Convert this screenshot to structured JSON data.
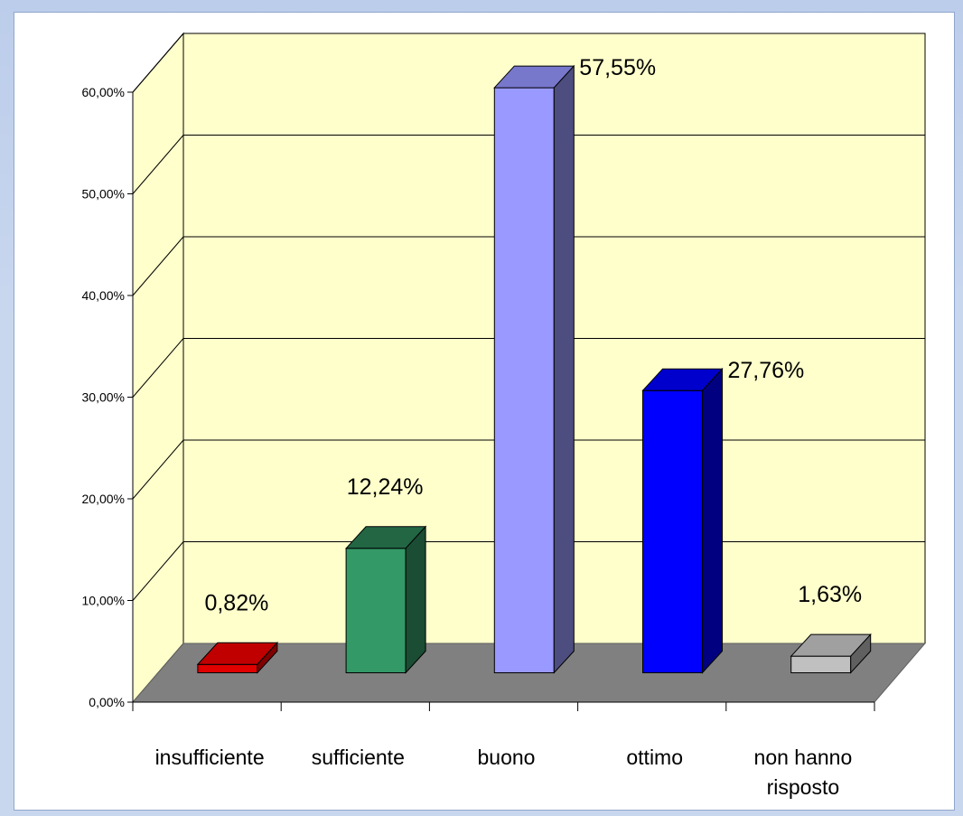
{
  "chart_data": {
    "type": "bar",
    "style": "3d-column",
    "categories": [
      "insufficiente",
      "sufficiente",
      "buono",
      "ottimo",
      "non hanno risposto"
    ],
    "category_lines": [
      [
        "insufficiente"
      ],
      [
        "sufficiente"
      ],
      [
        "buono"
      ],
      [
        "ottimo"
      ],
      [
        "non hanno",
        "risposto"
      ]
    ],
    "values": [
      0.82,
      12.24,
      57.55,
      27.76,
      1.63
    ],
    "data_labels": [
      "0,82%",
      "12,24%",
      "57,55%",
      "27,76%",
      "1,63%"
    ],
    "ylim": [
      0,
      60
    ],
    "yticks": [
      0,
      10,
      20,
      30,
      40,
      50,
      60
    ],
    "ytick_labels": [
      "0,00%",
      "10,00%",
      "20,00%",
      "30,00%",
      "40,00%",
      "50,00%",
      "60,00%"
    ],
    "title": "",
    "xlabel": "",
    "ylabel": "",
    "grid": true,
    "legend": "none",
    "colors": {
      "bars_front": [
        "#e00000",
        "#339966",
        "#9999ff",
        "#0000ff",
        "#c0c0c0"
      ],
      "bars_top": [
        "#c00000",
        "#226644",
        "#7777cc",
        "#0000cc",
        "#a0a0a0"
      ],
      "bars_side": [
        "#800000",
        "#1a4d33",
        "#4d4d80",
        "#000080",
        "#606060"
      ],
      "back_wall": "#ffffcc",
      "side_wall": "#ffffcc",
      "floor": "#808080",
      "gridline": "#000000"
    }
  }
}
